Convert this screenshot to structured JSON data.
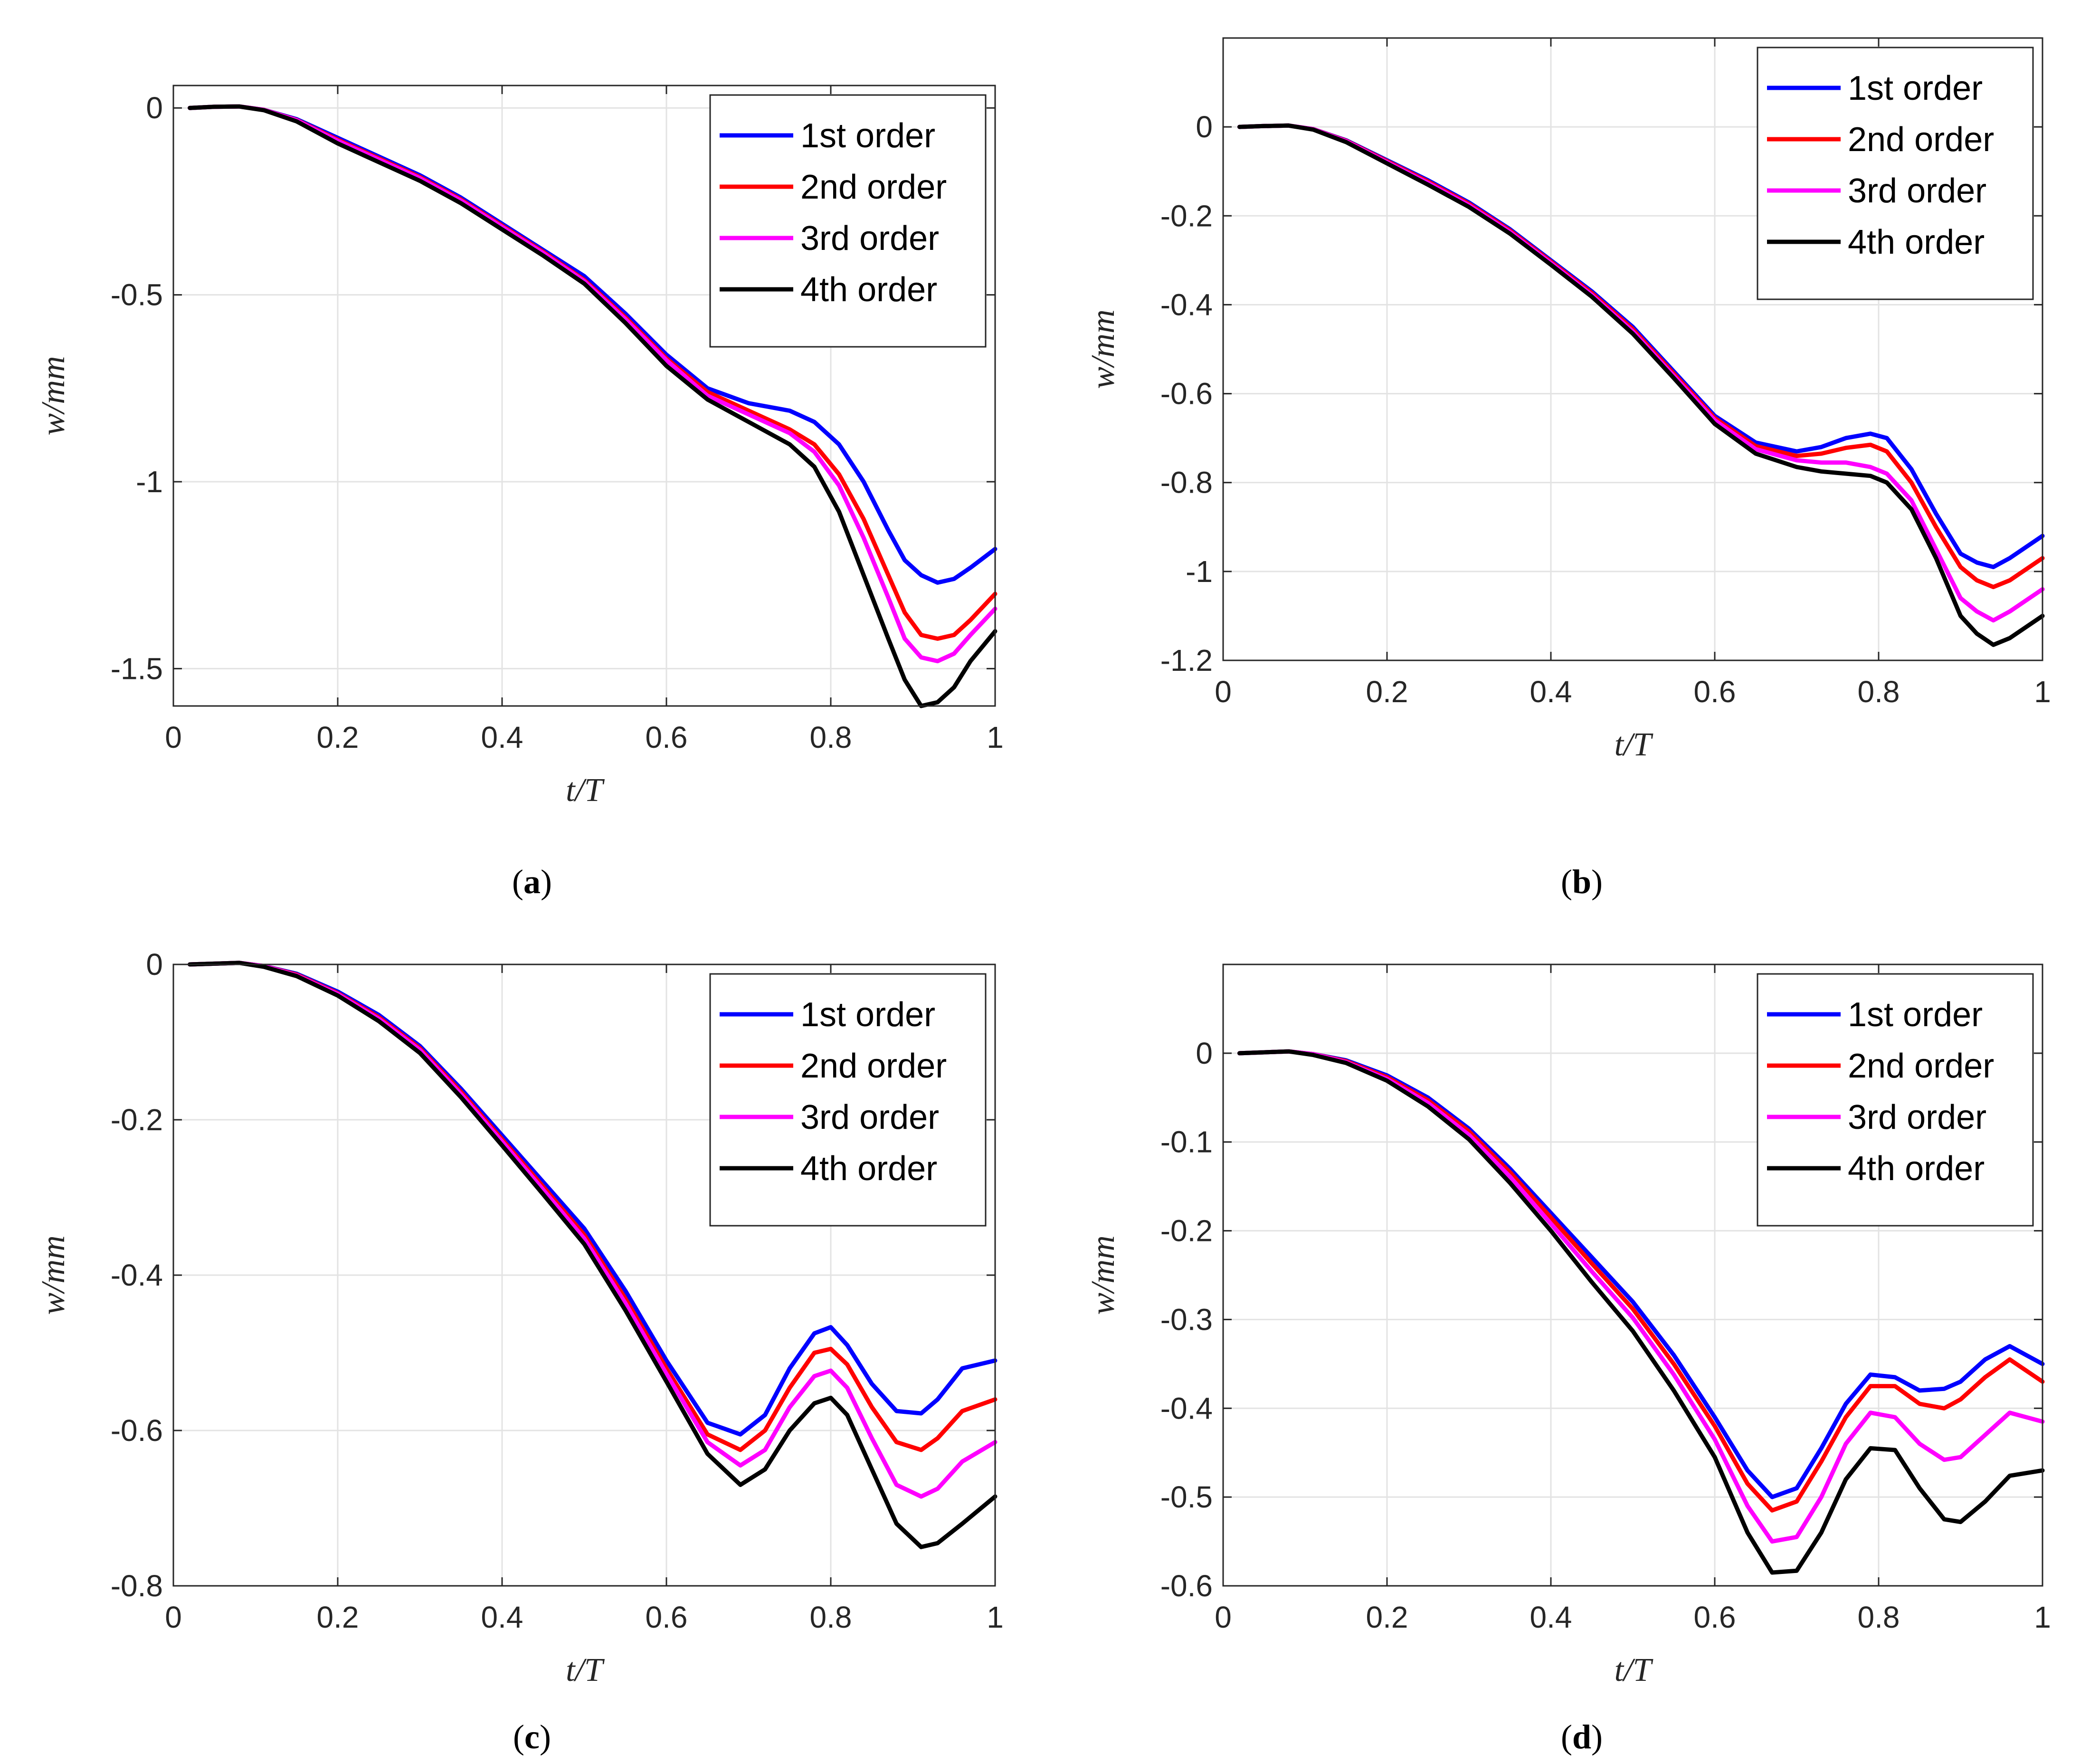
{
  "chart_data": [
    {
      "type": "line",
      "caption": "a",
      "xlabel": "t/T",
      "ylabel": "w/mm",
      "xlim": [
        0,
        1
      ],
      "ylim": [
        -1.6,
        0.06
      ],
      "xticks": [
        0,
        0.2,
        0.4,
        0.6,
        0.8,
        1
      ],
      "xtick_labels": [
        "0",
        "0.2",
        "0.4",
        "0.6",
        "0.8",
        "1"
      ],
      "yticks": [
        0,
        -0.5,
        -1,
        -1.5
      ],
      "ytick_labels": [
        "0",
        "-0.5",
        "-1",
        "-1.5"
      ],
      "grid": true,
      "legend_position": "top-right",
      "x": [
        0.02,
        0.05,
        0.08,
        0.11,
        0.15,
        0.2,
        0.25,
        0.3,
        0.35,
        0.4,
        0.45,
        0.5,
        0.55,
        0.6,
        0.65,
        0.7,
        0.75,
        0.78,
        0.81,
        0.84,
        0.87,
        0.89,
        0.91,
        0.93,
        0.95,
        0.97,
        1.0
      ],
      "series": [
        {
          "name": "1st order",
          "color": "#0000ff",
          "values": [
            0.0,
            0.003,
            0.004,
            -0.005,
            -0.03,
            -0.08,
            -0.13,
            -0.18,
            -0.24,
            -0.31,
            -0.38,
            -0.45,
            -0.55,
            -0.66,
            -0.75,
            -0.79,
            -0.81,
            -0.84,
            -0.9,
            -1.0,
            -1.13,
            -1.21,
            -1.25,
            -1.27,
            -1.26,
            -1.23,
            -1.18
          ]
        },
        {
          "name": "2nd order",
          "color": "#ff0000",
          "values": [
            0.0,
            0.003,
            0.004,
            -0.005,
            -0.032,
            -0.085,
            -0.135,
            -0.185,
            -0.245,
            -0.315,
            -0.385,
            -0.46,
            -0.56,
            -0.67,
            -0.76,
            -0.81,
            -0.86,
            -0.9,
            -0.98,
            -1.1,
            -1.25,
            -1.35,
            -1.41,
            -1.42,
            -1.41,
            -1.37,
            -1.3
          ]
        },
        {
          "name": "3rd order",
          "color": "#ff00ff",
          "values": [
            0.0,
            0.003,
            0.004,
            -0.005,
            -0.033,
            -0.088,
            -0.138,
            -0.188,
            -0.248,
            -0.318,
            -0.388,
            -0.463,
            -0.565,
            -0.675,
            -0.77,
            -0.82,
            -0.87,
            -0.92,
            -1.01,
            -1.15,
            -1.31,
            -1.42,
            -1.47,
            -1.48,
            -1.46,
            -1.41,
            -1.34
          ]
        },
        {
          "name": "4th order",
          "color": "#000000",
          "values": [
            0.0,
            0.003,
            0.004,
            -0.006,
            -0.036,
            -0.095,
            -0.145,
            -0.195,
            -0.255,
            -0.325,
            -0.395,
            -0.47,
            -0.575,
            -0.69,
            -0.78,
            -0.84,
            -0.9,
            -0.96,
            -1.08,
            -1.25,
            -1.42,
            -1.53,
            -1.6,
            -1.59,
            -1.55,
            -1.48,
            -1.4
          ]
        }
      ]
    },
    {
      "type": "line",
      "caption": "b",
      "xlabel": "t/T",
      "ylabel": "w/mm",
      "xlim": [
        0,
        1
      ],
      "ylim": [
        -1.2,
        0.2
      ],
      "xticks": [
        0,
        0.2,
        0.4,
        0.6,
        0.8,
        1
      ],
      "xtick_labels": [
        "0",
        "0.2",
        "0.4",
        "0.6",
        "0.8",
        "1"
      ],
      "yticks": [
        0,
        -0.2,
        -0.4,
        -0.6,
        -0.8,
        -1,
        -1.2
      ],
      "ytick_labels": [
        "0",
        "-0.2",
        "-0.4",
        "-0.6",
        "-0.8",
        "-1",
        "-1.2"
      ],
      "grid": true,
      "legend_position": "top-right",
      "x": [
        0.02,
        0.05,
        0.08,
        0.11,
        0.15,
        0.2,
        0.25,
        0.3,
        0.35,
        0.4,
        0.45,
        0.5,
        0.55,
        0.6,
        0.65,
        0.7,
        0.73,
        0.76,
        0.79,
        0.81,
        0.84,
        0.87,
        0.9,
        0.92,
        0.94,
        0.96,
        1.0
      ],
      "series": [
        {
          "name": "1st order",
          "color": "#0000ff",
          "values": [
            0.0,
            0.002,
            0.003,
            -0.005,
            -0.03,
            -0.075,
            -0.12,
            -0.17,
            -0.23,
            -0.3,
            -0.37,
            -0.45,
            -0.55,
            -0.65,
            -0.71,
            -0.73,
            -0.72,
            -0.7,
            -0.69,
            -0.7,
            -0.77,
            -0.87,
            -0.96,
            -0.98,
            -0.99,
            -0.97,
            -0.92
          ]
        },
        {
          "name": "2nd order",
          "color": "#ff0000",
          "values": [
            0.0,
            0.002,
            0.003,
            -0.005,
            -0.031,
            -0.077,
            -0.123,
            -0.173,
            -0.233,
            -0.303,
            -0.374,
            -0.455,
            -0.555,
            -0.655,
            -0.718,
            -0.74,
            -0.735,
            -0.722,
            -0.715,
            -0.73,
            -0.8,
            -0.9,
            -0.99,
            -1.02,
            -1.035,
            -1.02,
            -0.97
          ]
        },
        {
          "name": "3rd order",
          "color": "#ff00ff",
          "values": [
            0.0,
            0.002,
            0.003,
            -0.005,
            -0.032,
            -0.079,
            -0.126,
            -0.176,
            -0.236,
            -0.306,
            -0.378,
            -0.46,
            -0.56,
            -0.66,
            -0.725,
            -0.75,
            -0.755,
            -0.755,
            -0.765,
            -0.78,
            -0.84,
            -0.95,
            -1.06,
            -1.09,
            -1.11,
            -1.09,
            -1.04
          ]
        },
        {
          "name": "4th order",
          "color": "#000000",
          "values": [
            0.0,
            0.002,
            0.003,
            -0.006,
            -0.034,
            -0.082,
            -0.13,
            -0.18,
            -0.24,
            -0.31,
            -0.382,
            -0.465,
            -0.565,
            -0.668,
            -0.735,
            -0.765,
            -0.775,
            -0.78,
            -0.785,
            -0.8,
            -0.86,
            -0.97,
            -1.1,
            -1.14,
            -1.165,
            -1.15,
            -1.1
          ]
        }
      ]
    },
    {
      "type": "line",
      "caption": "c",
      "xlabel": "t/T",
      "ylabel": "w/mm",
      "xlim": [
        0,
        1
      ],
      "ylim": [
        -0.8,
        0.0
      ],
      "xticks": [
        0,
        0.2,
        0.4,
        0.6,
        0.8,
        1
      ],
      "xtick_labels": [
        "0",
        "0.2",
        "0.4",
        "0.6",
        "0.8",
        "1"
      ],
      "yticks": [
        0,
        -0.2,
        -0.4,
        -0.6,
        -0.8
      ],
      "ytick_labels": [
        "0",
        "-0.2",
        "-0.4",
        "-0.6",
        "-0.8"
      ],
      "grid": true,
      "legend_position": "top-right",
      "x": [
        0.02,
        0.05,
        0.08,
        0.11,
        0.15,
        0.2,
        0.25,
        0.3,
        0.35,
        0.4,
        0.45,
        0.5,
        0.55,
        0.6,
        0.65,
        0.69,
        0.72,
        0.75,
        0.78,
        0.8,
        0.82,
        0.85,
        0.88,
        0.91,
        0.93,
        0.96,
        1.0
      ],
      "series": [
        {
          "name": "1st order",
          "color": "#0000ff",
          "values": [
            0.0,
            0.001,
            0.002,
            -0.002,
            -0.012,
            -0.035,
            -0.065,
            -0.105,
            -0.16,
            -0.22,
            -0.28,
            -0.34,
            -0.42,
            -0.51,
            -0.59,
            -0.605,
            -0.58,
            -0.52,
            -0.475,
            -0.467,
            -0.49,
            -0.54,
            -0.575,
            -0.578,
            -0.56,
            -0.52,
            -0.51
          ]
        },
        {
          "name": "2nd order",
          "color": "#ff0000",
          "values": [
            0.0,
            0.001,
            0.002,
            -0.002,
            -0.013,
            -0.037,
            -0.068,
            -0.108,
            -0.164,
            -0.225,
            -0.286,
            -0.348,
            -0.43,
            -0.52,
            -0.605,
            -0.625,
            -0.6,
            -0.545,
            -0.5,
            -0.495,
            -0.515,
            -0.57,
            -0.615,
            -0.625,
            -0.61,
            -0.575,
            -0.56
          ]
        },
        {
          "name": "3rd order",
          "color": "#ff00ff",
          "values": [
            0.0,
            0.001,
            0.002,
            -0.002,
            -0.014,
            -0.038,
            -0.07,
            -0.11,
            -0.167,
            -0.228,
            -0.29,
            -0.353,
            -0.436,
            -0.527,
            -0.615,
            -0.645,
            -0.625,
            -0.57,
            -0.53,
            -0.523,
            -0.545,
            -0.61,
            -0.67,
            -0.685,
            -0.675,
            -0.64,
            -0.615
          ]
        },
        {
          "name": "4th order",
          "color": "#000000",
          "values": [
            0.0,
            0.001,
            0.002,
            -0.003,
            -0.015,
            -0.04,
            -0.073,
            -0.114,
            -0.171,
            -0.233,
            -0.296,
            -0.36,
            -0.445,
            -0.537,
            -0.63,
            -0.67,
            -0.65,
            -0.6,
            -0.565,
            -0.558,
            -0.58,
            -0.65,
            -0.72,
            -0.75,
            -0.745,
            -0.72,
            -0.685
          ]
        }
      ]
    },
    {
      "type": "line",
      "caption": "d",
      "xlabel": "t/T",
      "ylabel": "w/mm",
      "xlim": [
        0,
        1
      ],
      "ylim": [
        -0.6,
        0.1
      ],
      "xticks": [
        0,
        0.2,
        0.4,
        0.6,
        0.8,
        1
      ],
      "xtick_labels": [
        "0",
        "0.2",
        "0.4",
        "0.6",
        "0.8",
        "1"
      ],
      "yticks": [
        0,
        -0.1,
        -0.2,
        -0.3,
        -0.4,
        -0.5,
        -0.6
      ],
      "ytick_labels": [
        "0",
        "-0.1",
        "-0.2",
        "-0.3",
        "-0.4",
        "-0.5",
        "-0.6"
      ],
      "grid": true,
      "legend_position": "top-right",
      "x": [
        0.02,
        0.05,
        0.08,
        0.11,
        0.15,
        0.2,
        0.25,
        0.3,
        0.35,
        0.4,
        0.45,
        0.5,
        0.55,
        0.6,
        0.64,
        0.67,
        0.7,
        0.73,
        0.76,
        0.79,
        0.82,
        0.85,
        0.88,
        0.9,
        0.93,
        0.96,
        1.0
      ],
      "series": [
        {
          "name": "1st order",
          "color": "#0000ff",
          "values": [
            0.0,
            0.001,
            0.002,
            -0.001,
            -0.008,
            -0.025,
            -0.05,
            -0.085,
            -0.13,
            -0.18,
            -0.23,
            -0.28,
            -0.34,
            -0.41,
            -0.47,
            -0.5,
            -0.49,
            -0.445,
            -0.395,
            -0.362,
            -0.365,
            -0.38,
            -0.378,
            -0.37,
            -0.345,
            -0.33,
            -0.35
          ]
        },
        {
          "name": "2nd order",
          "color": "#ff0000",
          "values": [
            0.0,
            0.001,
            0.002,
            -0.001,
            -0.009,
            -0.027,
            -0.053,
            -0.088,
            -0.134,
            -0.185,
            -0.237,
            -0.288,
            -0.35,
            -0.42,
            -0.485,
            -0.515,
            -0.505,
            -0.46,
            -0.41,
            -0.375,
            -0.375,
            -0.395,
            -0.4,
            -0.39,
            -0.365,
            -0.345,
            -0.37
          ]
        },
        {
          "name": "3rd order",
          "color": "#ff00ff",
          "values": [
            0.0,
            0.001,
            0.002,
            -0.001,
            -0.01,
            -0.029,
            -0.056,
            -0.092,
            -0.139,
            -0.192,
            -0.246,
            -0.298,
            -0.362,
            -0.435,
            -0.51,
            -0.55,
            -0.545,
            -0.5,
            -0.44,
            -0.405,
            -0.41,
            -0.44,
            -0.458,
            -0.455,
            -0.43,
            -0.405,
            -0.415
          ]
        },
        {
          "name": "4th order",
          "color": "#000000",
          "values": [
            0.0,
            0.001,
            0.002,
            -0.002,
            -0.011,
            -0.031,
            -0.06,
            -0.097,
            -0.146,
            -0.2,
            -0.258,
            -0.313,
            -0.38,
            -0.455,
            -0.54,
            -0.585,
            -0.583,
            -0.54,
            -0.48,
            -0.445,
            -0.447,
            -0.49,
            -0.525,
            -0.528,
            -0.505,
            -0.476,
            -0.47
          ]
        }
      ]
    }
  ]
}
